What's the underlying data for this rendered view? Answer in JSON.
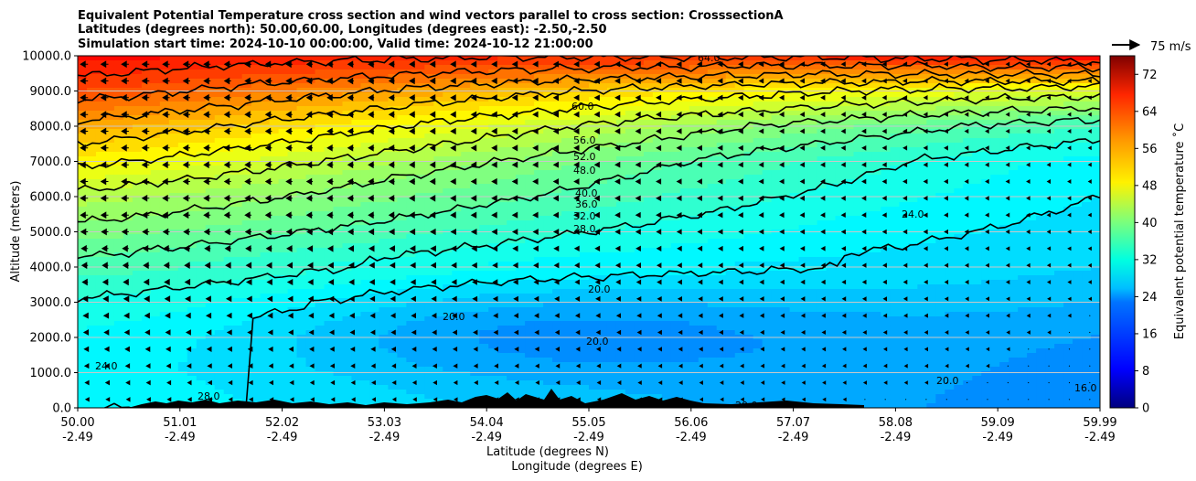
{
  "chart_data": {
    "type": "heatmap",
    "title_lines": [
      "Equivalent Potential Temperature cross section and wind vectors parallel to cross section: CrosssectionA",
      "Latitudes (degrees north): 50.00,60.00, Longitudes (degrees east): -2.50,-2.50",
      "Simulation start time: 2024-10-10 00:00:00, Valid time: 2024-10-12 21:00:00"
    ],
    "ylabel": "Altitude (meters)",
    "xlabel_lines": [
      "Latitude (degrees N)",
      "Longitude (degrees E)"
    ],
    "ylim": [
      0,
      10000
    ],
    "y_ticks": [
      {
        "value": 0,
        "label": "0.0"
      },
      {
        "value": 1000,
        "label": "1000.0"
      },
      {
        "value": 2000,
        "label": "2000.0"
      },
      {
        "value": 3000,
        "label": "3000.0"
      },
      {
        "value": 4000,
        "label": "4000.0"
      },
      {
        "value": 5000,
        "label": "5000.0"
      },
      {
        "value": 6000,
        "label": "6000.0"
      },
      {
        "value": 7000,
        "label": "7000.0"
      },
      {
        "value": 8000,
        "label": "8000.0"
      },
      {
        "value": 9000,
        "label": "9000.0"
      },
      {
        "value": 10000,
        "label": "10000.0"
      }
    ],
    "x_ticks": [
      {
        "lat": "50.00",
        "lon": "-2.49"
      },
      {
        "lat": "51.01",
        "lon": "-2.49"
      },
      {
        "lat": "52.02",
        "lon": "-2.49"
      },
      {
        "lat": "53.03",
        "lon": "-2.49"
      },
      {
        "lat": "54.04",
        "lon": "-2.49"
      },
      {
        "lat": "55.05",
        "lon": "-2.49"
      },
      {
        "lat": "56.06",
        "lon": "-2.49"
      },
      {
        "lat": "57.07",
        "lon": "-2.49"
      },
      {
        "lat": "58.08",
        "lon": "-2.49"
      },
      {
        "lat": "59.09",
        "lon": "-2.49"
      },
      {
        "lat": "59.99",
        "lon": "-2.49"
      }
    ],
    "colorbar": {
      "label": "Equivalent potential temperature ˚C",
      "range": [
        0,
        76
      ],
      "ticks": [
        "0",
        "8",
        "16",
        "24",
        "32",
        "40",
        "48",
        "56",
        "64",
        "72"
      ]
    },
    "wind_reference": {
      "label": "75 m/s",
      "speed_ms": 75
    },
    "contour_labels": [
      "64.0",
      "60.0",
      "56.0",
      "52.0",
      "48.0",
      "40.0",
      "36.0",
      "32.0",
      "28.0",
      "24.0",
      "20.0",
      "16.0"
    ],
    "theta_e_profile": {
      "levels_m": [
        0,
        1000,
        2000,
        3000,
        4000,
        5000,
        6000,
        7000,
        8000,
        9000,
        10000
      ],
      "south_values": [
        29,
        29,
        30,
        32,
        35,
        39,
        43,
        49,
        55,
        62,
        67
      ],
      "north_values": [
        20,
        21,
        22,
        24,
        26,
        27,
        28,
        29,
        34,
        46,
        68
      ]
    },
    "wind_sample": {
      "south_speed_upper_ms": 20,
      "north_speed_upper_ms": 3,
      "direction": "southward (toward lower latitude)"
    }
  }
}
